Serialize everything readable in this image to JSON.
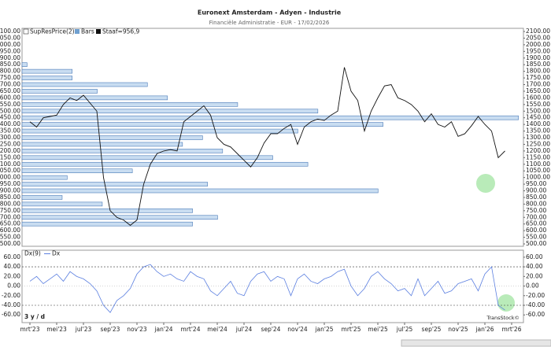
{
  "chart_data": [
    {
      "type": "bar",
      "title": "Euronext Amsterdam - Adyen - Industrie",
      "subtitle": "Financiële Administratie - EUR - 17/02/2026",
      "readout": "Staaf=956,9",
      "categories": [
        "mrt'23",
        null,
        null,
        null,
        "mei'23",
        null,
        null,
        null,
        "jul'23",
        null,
        null,
        null,
        "sep'23",
        null,
        null,
        null,
        "nov'23",
        null,
        null,
        null,
        "jan'24",
        null,
        null,
        null,
        "mrt'24",
        null,
        null,
        null,
        "mei'24",
        null,
        null,
        null,
        "jul'24",
        null,
        null,
        null,
        "sep'24",
        null,
        null,
        null,
        "nov'24",
        null,
        null,
        null,
        "jan'25",
        null,
        null,
        null,
        "mrt'25",
        null,
        null,
        null,
        "mei'25",
        null,
        null,
        null,
        "jul'25",
        null,
        null,
        null,
        "sep'25",
        null,
        null,
        null,
        "nov'25",
        null,
        null,
        null,
        "jan'26",
        null,
        null,
        null,
        "mrt'26"
      ],
      "series": [
        {
          "name": "Bars",
          "color": "#111111",
          "values": [
            1420,
            1380,
            1450,
            1460,
            1470,
            1550,
            1600,
            1580,
            1620,
            1560,
            1500,
            1000,
            750,
            700,
            680,
            640,
            680,
            950,
            1100,
            1180,
            1200,
            1210,
            1200,
            1420,
            1460,
            1500,
            1540,
            1470,
            1300,
            1250,
            1230,
            1180,
            1130,
            1080,
            1150,
            1260,
            1330,
            1330,
            1370,
            1400,
            1250,
            1380,
            1420,
            1440,
            1430,
            1470,
            1500,
            1830,
            1650,
            1580,
            1350,
            1500,
            1600,
            1690,
            1700,
            1600,
            1580,
            1550,
            1500,
            1420,
            1480,
            1400,
            1380,
            1420,
            1310,
            1330,
            1390,
            1460,
            1400,
            1350,
            1150,
            1200,
            null
          ]
        }
      ],
      "profile": {
        "name": "SupResPrice(2)",
        "color": "#c9ddf1",
        "levels": [
          1850,
          1800,
          1750,
          1700,
          1650,
          1600,
          1550,
          1500,
          1450,
          1400,
          1350,
          1300,
          1250,
          1200,
          1150,
          1100,
          1050,
          1000,
          950,
          900,
          850,
          800,
          750,
          700,
          650
        ],
        "values": [
          1,
          10,
          10,
          25,
          15,
          29,
          43,
          59,
          99,
          72,
          55,
          36,
          32,
          40,
          50,
          57,
          22,
          9,
          37,
          71,
          8,
          16,
          34,
          39,
          34
        ],
        "xlim": [
          0,
          100
        ]
      },
      "ylim": [
        500,
        2100
      ],
      "yticks": [
        {
          "value": 2100,
          "label": "2100.00"
        },
        {
          "value": 2050,
          "label": "2050.00"
        },
        {
          "value": 2000,
          "label": "2000.00"
        },
        {
          "value": 1950,
          "label": "1950.00"
        },
        {
          "value": 1900,
          "label": "1900.00"
        },
        {
          "value": 1850,
          "label": "1850.00"
        },
        {
          "value": 1800,
          "label": "1800.00"
        },
        {
          "value": 1750,
          "label": "1750.00"
        },
        {
          "value": 1700,
          "label": "1700.00"
        },
        {
          "value": 1650,
          "label": "1650.00"
        },
        {
          "value": 1600,
          "label": "1600.00"
        },
        {
          "value": 1550,
          "label": "1550.00"
        },
        {
          "value": 1500,
          "label": "1500.00"
        },
        {
          "value": 1450,
          "label": "1450.00"
        },
        {
          "value": 1400,
          "label": "1400.00"
        },
        {
          "value": 1350,
          "label": "1350.00"
        },
        {
          "value": 1300,
          "label": "1300.00"
        },
        {
          "value": 1250,
          "label": "1250.00"
        },
        {
          "value": 1200,
          "label": "1200.00"
        },
        {
          "value": 1150,
          "label": "1150.00"
        },
        {
          "value": 1100,
          "label": "1100.00"
        },
        {
          "value": 1050,
          "label": "1050.00"
        },
        {
          "value": 1000,
          "label": "1000.00"
        },
        {
          "value": 950,
          "label": "950.00"
        },
        {
          "value": 900,
          "label": "900.00"
        },
        {
          "value": 850,
          "label": "850.00"
        },
        {
          "value": 800,
          "label": "800.00"
        },
        {
          "value": 750,
          "label": "750.00"
        },
        {
          "value": 700,
          "label": "700.00"
        },
        {
          "value": 650,
          "label": "650.00"
        },
        {
          "value": 600,
          "label": "600.00"
        },
        {
          "value": 550,
          "label": "550.00"
        },
        {
          "value": 500,
          "label": "500.00"
        }
      ]
    },
    {
      "type": "line",
      "title": "Dx(9)",
      "period": "3 y / d",
      "credit": "TransStock©",
      "series": [
        {
          "name": "Dx",
          "color": "#5b7fe0",
          "values": [
            10,
            20,
            5,
            15,
            25,
            10,
            30,
            20,
            15,
            5,
            -10,
            -40,
            -55,
            -30,
            -20,
            -5,
            25,
            40,
            45,
            30,
            20,
            25,
            15,
            10,
            30,
            20,
            15,
            -10,
            -20,
            -5,
            10,
            -15,
            -20,
            10,
            25,
            30,
            10,
            20,
            15,
            -20,
            15,
            25,
            10,
            5,
            15,
            20,
            30,
            35,
            0,
            -20,
            -5,
            20,
            30,
            15,
            5,
            -10,
            -5,
            -20,
            15,
            -20,
            -5,
            10,
            -15,
            -10,
            5,
            10,
            15,
            -10,
            25,
            40,
            -40,
            -50,
            null
          ]
        }
      ],
      "ylim": [
        -76,
        68
      ],
      "yticks": [
        {
          "value": 60,
          "label": "60.00"
        },
        {
          "value": 40,
          "label": "40.00"
        },
        {
          "value": 20,
          "label": "20.00"
        },
        {
          "value": 0,
          "label": "0.00"
        },
        {
          "value": -20,
          "label": "-20.00"
        },
        {
          "value": -40,
          "label": "-40.00"
        },
        {
          "value": -60,
          "label": "-60.00"
        }
      ],
      "grid": true
    }
  ]
}
